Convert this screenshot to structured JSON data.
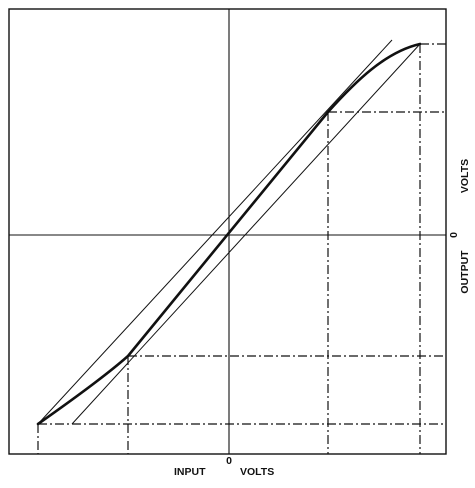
{
  "labels": {
    "x_zero": "0",
    "x_input": "INPUT",
    "x_volts": "VOLTS",
    "y_zero": "0",
    "y_output": "OUTPUT",
    "y_volts": "VOLTS"
  },
  "colors": {
    "ink": "#111111",
    "background": "#ffffff"
  }
}
